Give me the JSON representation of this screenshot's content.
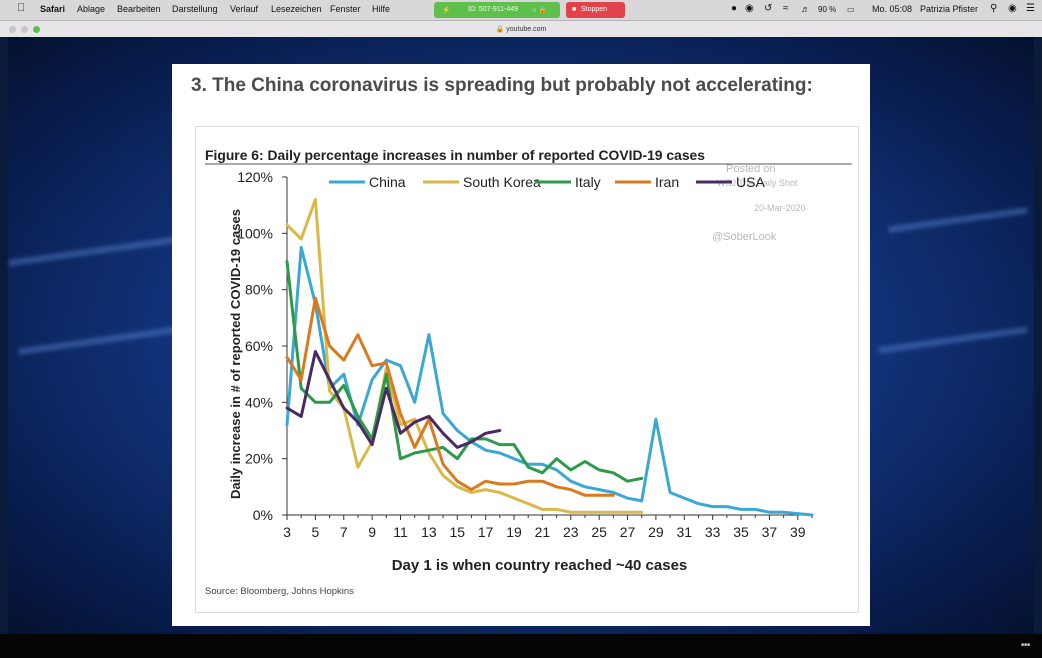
{
  "menubar": {
    "app": "Safari",
    "items": [
      "Ablage",
      "Bearbeiten",
      "Darstellung",
      "Verlauf",
      "Lesezeichen",
      "Fenster",
      "Hilfe"
    ],
    "meeting_id": "ID: 507-911-449",
    "stop_label": "Stoppen",
    "battery": "90 %",
    "clock": "Mo. 05:08",
    "user": "Patrizia Pfister"
  },
  "browser": {
    "url": "youtube.com"
  },
  "slide": {
    "title": "3. The China coronavirus is spreading but probably not accelerating:"
  },
  "chart_data": {
    "type": "line",
    "title": "Figure 6: Daily percentage increases in number of reported COVID-19 cases",
    "xlabel": "Day 1 is when country reached ~40 cases",
    "ylabel": "Daily increase in # of reported COVID-19 cases",
    "source": "Source: Bloomberg, Johns Hopkins",
    "annotations": [
      "Posted on",
      "WSJ The Daily Shot",
      "20-Mar-2020",
      "@SoberLook"
    ],
    "xlim": [
      3,
      40
    ],
    "ylim": [
      0,
      120
    ],
    "x_ticks": [
      3,
      5,
      7,
      9,
      11,
      13,
      15,
      17,
      19,
      21,
      23,
      25,
      27,
      29,
      31,
      33,
      35,
      37,
      39
    ],
    "y_ticks": [
      0,
      20,
      40,
      60,
      80,
      100,
      120
    ],
    "y_tick_labels": [
      "0%",
      "20%",
      "40%",
      "60%",
      "80%",
      "100%",
      "120%"
    ],
    "legend_position": "top",
    "grid": false,
    "series": [
      {
        "name": "China",
        "color": "#3aa7d4",
        "x": [
          3,
          4,
          5,
          6,
          7,
          8,
          9,
          10,
          11,
          12,
          13,
          14,
          15,
          16,
          17,
          18,
          19,
          20,
          21,
          22,
          23,
          24,
          25,
          26,
          27,
          28,
          29,
          30,
          31,
          32,
          33,
          34,
          35,
          36,
          37,
          38,
          39,
          40
        ],
        "y": [
          32,
          95,
          75,
          45,
          50,
          32,
          48,
          55,
          53,
          40,
          64,
          36,
          30,
          26,
          23,
          22,
          20,
          18,
          18,
          16,
          12,
          10,
          9,
          8,
          6,
          5,
          34,
          8,
          6,
          4,
          3,
          3,
          2,
          2,
          1,
          1,
          0.5,
          0
        ]
      },
      {
        "name": "South Korea",
        "color": "#d9b84a",
        "x": [
          3,
          4,
          5,
          6,
          7,
          8,
          9,
          10,
          11,
          12,
          13,
          14,
          15,
          16,
          17,
          18,
          19,
          20,
          21,
          22,
          23,
          24,
          25,
          26,
          27,
          28
        ],
        "y": [
          103,
          98,
          112,
          44,
          38,
          17,
          26,
          52,
          32,
          34,
          22,
          14,
          10,
          8,
          9,
          8,
          6,
          4,
          2,
          2,
          1,
          1,
          1,
          1,
          1,
          1
        ]
      },
      {
        "name": "Italy",
        "color": "#2e9a49",
        "x": [
          3,
          4,
          5,
          6,
          7,
          8,
          9,
          10,
          11,
          12,
          13,
          14,
          15,
          16,
          17,
          18,
          19,
          20,
          21,
          22,
          23,
          24,
          25,
          26,
          27,
          28
        ],
        "y": [
          90,
          45,
          40,
          40,
          46,
          35,
          27,
          50,
          20,
          22,
          23,
          24,
          20,
          27,
          27,
          25,
          25,
          17,
          15,
          20,
          16,
          19,
          16,
          15,
          12,
          13
        ]
      },
      {
        "name": "Iran",
        "color": "#d97a21",
        "x": [
          3,
          4,
          5,
          6,
          7,
          8,
          9,
          10,
          11,
          12,
          13,
          14,
          15,
          16,
          17,
          18,
          19,
          20,
          21,
          22,
          23,
          24,
          25,
          26
        ],
        "y": [
          56,
          48,
          77,
          60,
          55,
          64,
          53,
          54,
          36,
          24,
          34,
          18,
          12,
          9,
          12,
          11,
          11,
          12,
          12,
          10,
          9,
          7,
          7,
          7
        ]
      },
      {
        "name": "USA",
        "color": "#4a2a62",
        "x": [
          3,
          4,
          5,
          6,
          7,
          8,
          9,
          10,
          11,
          12,
          13,
          14,
          15,
          16,
          17,
          18
        ],
        "y": [
          38,
          35,
          58,
          48,
          38,
          33,
          25,
          45,
          29,
          33,
          35,
          29,
          24,
          26,
          29,
          30
        ]
      }
    ]
  }
}
